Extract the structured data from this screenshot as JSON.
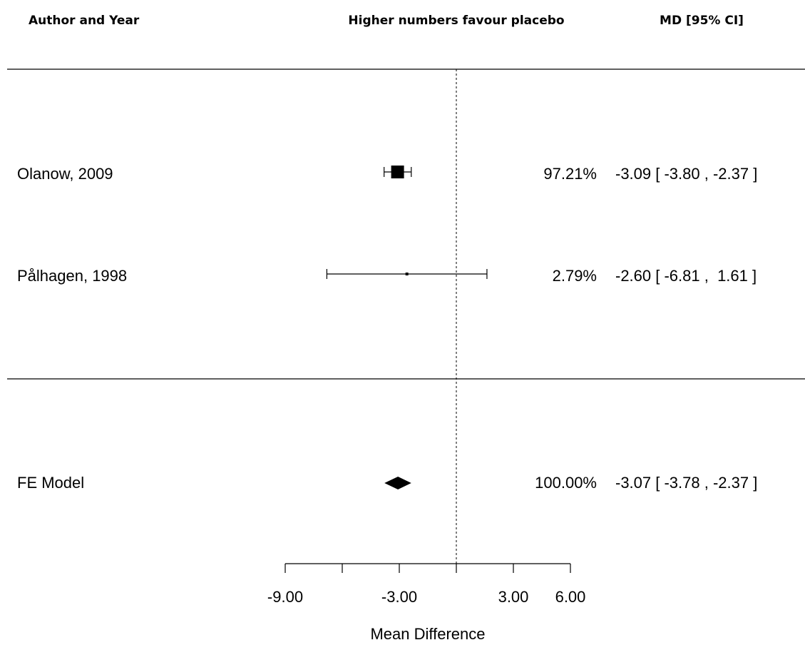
{
  "headers": {
    "author_year": "Author and Year",
    "direction": "Higher numbers favour placebo",
    "effect": "MD [95% CI]"
  },
  "chart_data": {
    "type": "forest",
    "xlabel": "Mean Difference",
    "xlim": [
      -9,
      6
    ],
    "ticks": [
      -9,
      -6,
      -3,
      0,
      3,
      6
    ],
    "tick_labels": [
      "-9.00",
      "",
      "-3.00",
      "",
      "3.00",
      "6.00"
    ],
    "reference_line": 0,
    "studies": [
      {
        "label": "Olanow, 2009",
        "estimate": -3.09,
        "ci_low": -3.8,
        "ci_high": -2.37,
        "weight": 97.21,
        "weight_text": "97.21%",
        "ci_text": "-3.09 [ -3.80 , -2.37 ]"
      },
      {
        "label": "Pålhagen, 1998",
        "estimate": -2.6,
        "ci_low": -6.81,
        "ci_high": 1.61,
        "weight": 2.79,
        "weight_text": "2.79%",
        "ci_text": "-2.60 [ -6.81 ,  1.61 ]"
      }
    ],
    "summary": {
      "label": "FE Model",
      "estimate": -3.07,
      "ci_low": -3.78,
      "ci_high": -2.37,
      "weight_text": "100.00%",
      "ci_text": "-3.07 [ -3.78 , -2.37 ]"
    },
    "colors": {
      "ink": "#000000"
    }
  }
}
